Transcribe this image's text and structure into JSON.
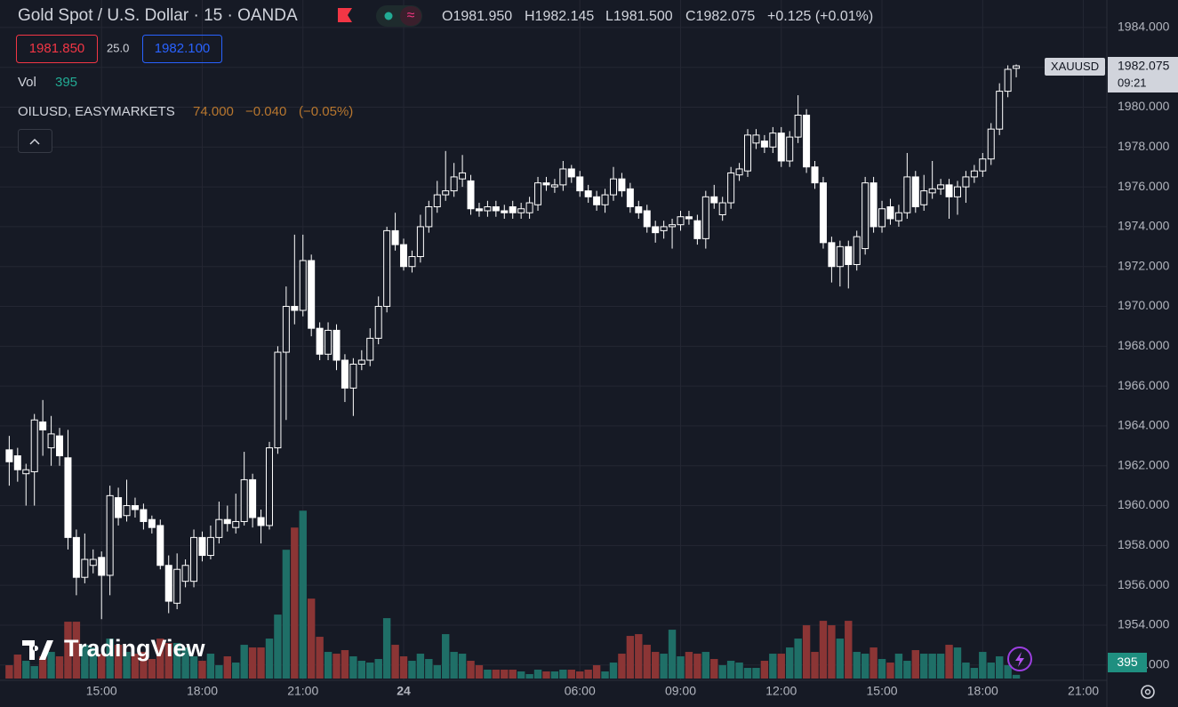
{
  "chart_data": {
    "type": "candlestick",
    "title": "Gold Spot / U.S. Dollar · 15 · OANDA",
    "legend": [
      "O1981.950",
      "H1982.145",
      "L1981.500",
      "C1982.075",
      "+0.125 (+0.01%)"
    ],
    "sell_price": "1981.850",
    "spread": "25.0",
    "buy_price": "1982.100",
    "volume_label": "Vol",
    "volume_value": "395",
    "compare_symbol": "OILUSD, EASYMARKETS",
    "compare_values": [
      "74.000",
      "−0.040",
      "(−0.05%)"
    ],
    "symbol": "XAUUSD",
    "countdown": "09:21",
    "brand": "TradingView",
    "candle_color": "#ffffff",
    "up_volume_color": "#1f6f67",
    "down_volume_color": "#8b3535",
    "grid": true,
    "xlim": [
      -1.1,
      130.8
    ],
    "xticks": [
      {
        "value": 11,
        "label": "15:00"
      },
      {
        "value": 23,
        "label": "18:00"
      },
      {
        "value": 35,
        "label": "21:00"
      },
      {
        "value": 47,
        "label": "24"
      },
      {
        "value": 68,
        "label": "06:00"
      },
      {
        "value": 80,
        "label": "09:00"
      },
      {
        "value": 92,
        "label": "12:00"
      },
      {
        "value": 104,
        "label": "15:00"
      },
      {
        "value": 116,
        "label": "18:00"
      },
      {
        "value": 128,
        "label": "21:00"
      }
    ],
    "ylim": [
      1951.23,
      1985.38
    ],
    "yticks": [
      {
        "value": 1952,
        "label": "1952.000"
      },
      {
        "value": 1954,
        "label": "1954.000"
      },
      {
        "value": 1956,
        "label": "1956.000"
      },
      {
        "value": 1958,
        "label": "1958.000"
      },
      {
        "value": 1960,
        "label": "1960.000"
      },
      {
        "value": 1962,
        "label": "1962.000"
      },
      {
        "value": 1964,
        "label": "1964.000"
      },
      {
        "value": 1966,
        "label": "1966.000"
      },
      {
        "value": 1968,
        "label": "1968.000"
      },
      {
        "value": 1970,
        "label": "1970.000"
      },
      {
        "value": 1972,
        "label": "1972.000"
      },
      {
        "value": 1974,
        "label": "1974.000"
      },
      {
        "value": 1976,
        "label": "1976.000"
      },
      {
        "value": 1978,
        "label": "1978.000"
      },
      {
        "value": 1980,
        "label": "1980.000"
      },
      {
        "value": 1982,
        "label": "1982.000"
      },
      {
        "value": 1984,
        "label": "1984.000"
      }
    ],
    "y2lim": [
      0,
      19500
    ],
    "open": [
      1962.8,
      1962.5,
      1961.6,
      1961.7,
      1964.2,
      1962.9,
      1963.5,
      1962.4,
      1958.4,
      1956.4,
      1957.0,
      1957.4,
      1956.5,
      1960.4,
      1959.5,
      1960.0,
      1959.8,
      1959.3,
      1959.0,
      1957.0,
      1955.1,
      1956.2,
      1956.2,
      1958.4,
      1957.5,
      1958.4,
      1959.3,
      1958.9,
      1959.2,
      1961.3,
      1959.4,
      1959.0,
      1962.9,
      1967.7,
      1970.0,
      1969.8,
      1972.3,
      1968.9,
      1967.6,
      1968.8,
      1967.3,
      1965.9,
      1967.1,
      1967.3,
      1968.4,
      1970.0,
      1973.8,
      1973.1,
      1972.0,
      1972.5,
      1974.0,
      1975.0,
      1975.6,
      1975.8,
      1976.4,
      1976.3,
      1974.9,
      1974.8,
      1975.0,
      1974.8,
      1975.0,
      1974.7,
      1974.7,
      1975.1,
      1976.2,
      1976.0,
      1976.1,
      1976.9,
      1976.5,
      1975.8,
      1975.5,
      1975.1,
      1975.6,
      1976.4,
      1975.9,
      1975.0,
      1974.8,
      1974.0,
      1973.8,
      1974.0,
      1974.1,
      1974.5,
      1974.3,
      1973.4,
      1975.5,
      1974.6,
      1975.2,
      1976.6,
      1976.8,
      1978.2,
      1978.3,
      1978.0,
      1978.7,
      1977.3,
      1978.5,
      1979.6,
      1977.0,
      1976.2,
      1973.2,
      1972.0,
      1973.0,
      1972.1,
      1972.9,
      1976.2,
      1974.0,
      1975.0,
      1974.3,
      1974.7,
      1976.5,
      1975.1,
      1975.7,
      1975.9,
      1976.1,
      1975.5,
      1976.0,
      1976.5,
      1976.8,
      1977.4,
      1978.9,
      1980.8,
      1981.95
    ],
    "high": [
      1963.5,
      1962.9,
      1962.1,
      1964.6,
      1965.3,
      1964.5,
      1963.9,
      1963.8,
      1958.8,
      1958.6,
      1957.8,
      1957.7,
      1961.0,
      1960.9,
      1961.3,
      1960.4,
      1960.1,
      1959.5,
      1959.3,
      1957.5,
      1957.6,
      1957.3,
      1958.8,
      1958.7,
      1959.0,
      1960.2,
      1960.0,
      1960.6,
      1962.7,
      1961.6,
      1959.8,
      1963.2,
      1968.0,
      1971.0,
      1973.6,
      1973.6,
      1972.6,
      1969.2,
      1969.2,
      1969.1,
      1967.6,
      1967.4,
      1967.8,
      1968.9,
      1970.5,
      1974.0,
      1974.7,
      1973.4,
      1972.8,
      1974.6,
      1975.3,
      1976.3,
      1977.8,
      1977.2,
      1977.6,
      1976.6,
      1975.2,
      1975.3,
      1975.3,
      1975.1,
      1975.3,
      1975.2,
      1975.5,
      1976.5,
      1976.5,
      1976.4,
      1977.3,
      1977.1,
      1976.8,
      1976.1,
      1975.8,
      1975.9,
      1977.0,
      1976.7,
      1976.2,
      1975.3,
      1975.1,
      1974.3,
      1974.3,
      1974.4,
      1974.8,
      1974.8,
      1974.6,
      1975.8,
      1976.1,
      1975.5,
      1977.0,
      1977.2,
      1978.9,
      1978.9,
      1978.6,
      1979.0,
      1979.0,
      1978.8,
      1980.6,
      1979.9,
      1977.3,
      1976.5,
      1973.5,
      1973.3,
      1973.3,
      1973.8,
      1976.5,
      1976.5,
      1975.3,
      1975.4,
      1975.1,
      1977.7,
      1976.8,
      1976.6,
      1977.3,
      1976.4,
      1976.4,
      1976.3,
      1976.8,
      1977.1,
      1977.7,
      1979.2,
      1981.2,
      1982.1,
      1982.145
    ],
    "low": [
      1961.0,
      1961.2,
      1960.0,
      1960.0,
      1962.5,
      1962.0,
      1962.0,
      1957.8,
      1955.5,
      1956.1,
      1956.6,
      1954.3,
      1955.5,
      1959.0,
      1959.2,
      1959.4,
      1958.8,
      1958.6,
      1956.8,
      1954.6,
      1954.8,
      1955.9,
      1955.9,
      1957.2,
      1957.3,
      1958.1,
      1958.7,
      1958.6,
      1959.0,
      1958.9,
      1958.1,
      1958.8,
      1962.6,
      1964.3,
      1969.1,
      1969.5,
      1968.5,
      1967.3,
      1967.3,
      1966.8,
      1965.2,
      1964.5,
      1966.8,
      1967.0,
      1968.1,
      1969.7,
      1972.8,
      1971.8,
      1971.7,
      1972.2,
      1973.7,
      1974.7,
      1975.3,
      1975.5,
      1976.0,
      1974.6,
      1974.5,
      1974.5,
      1974.5,
      1974.4,
      1974.4,
      1974.4,
      1974.4,
      1974.8,
      1975.8,
      1975.7,
      1975.8,
      1976.2,
      1975.5,
      1975.2,
      1974.8,
      1974.7,
      1975.3,
      1975.5,
      1974.7,
      1974.4,
      1973.7,
      1973.2,
      1973.4,
      1972.9,
      1973.8,
      1974.1,
      1973.1,
      1972.9,
      1974.9,
      1974.3,
      1974.9,
      1976.3,
      1976.5,
      1977.9,
      1977.7,
      1977.7,
      1977.0,
      1977.0,
      1978.2,
      1976.7,
      1975.9,
      1972.9,
      1971.2,
      1971.0,
      1970.9,
      1971.8,
      1972.6,
      1973.7,
      1973.7,
      1974.1,
      1974.0,
      1974.4,
      1974.7,
      1974.8,
      1975.4,
      1975.6,
      1974.4,
      1974.6,
      1975.2,
      1976.2,
      1976.5,
      1977.1,
      1978.6,
      1980.5,
      1981.5
    ],
    "close": [
      1962.2,
      1961.8,
      1961.8,
      1964.3,
      1963.8,
      1963.6,
      1962.5,
      1958.4,
      1956.4,
      1957.3,
      1957.3,
      1956.5,
      1960.5,
      1959.4,
      1960.0,
      1959.8,
      1959.2,
      1958.9,
      1957.0,
      1955.2,
      1956.8,
      1957.0,
      1958.4,
      1957.5,
      1958.4,
      1959.3,
      1959.1,
      1959.2,
      1961.3,
      1959.4,
      1959.0,
      1962.9,
      1967.7,
      1970.0,
      1969.8,
      1972.3,
      1968.9,
      1967.6,
      1968.8,
      1967.3,
      1965.9,
      1967.1,
      1967.3,
      1968.4,
      1970.0,
      1973.8,
      1973.1,
      1972.0,
      1972.5,
      1974.0,
      1975.0,
      1975.6,
      1975.8,
      1976.5,
      1976.7,
      1974.9,
      1974.8,
      1975.0,
      1974.8,
      1974.7,
      1974.7,
      1974.9,
      1975.2,
      1976.2,
      1976.1,
      1976.1,
      1976.9,
      1976.5,
      1975.8,
      1975.5,
      1975.1,
      1975.6,
      1976.4,
      1975.8,
      1975.0,
      1974.7,
      1974.0,
      1973.7,
      1974.0,
      1974.1,
      1974.5,
      1974.4,
      1973.4,
      1975.5,
      1975.2,
      1975.2,
      1976.7,
      1976.9,
      1978.6,
      1978.6,
      1978.0,
      1978.7,
      1977.3,
      1978.5,
      1979.6,
      1977.0,
      1976.2,
      1973.2,
      1972.0,
      1973.0,
      1972.1,
      1973.5,
      1976.2,
      1974.0,
      1974.9,
      1974.4,
      1974.7,
      1976.5,
      1975.0,
      1975.8,
      1975.9,
      1976.1,
      1975.5,
      1976.0,
      1976.5,
      1976.8,
      1977.4,
      1978.9,
      1980.8,
      1981.9,
      1982.075
    ],
    "volume": [
      1425,
      2565,
      1900,
      1330,
      2375,
      2850,
      2375,
      6080,
      6080,
      3610,
      3325,
      2660,
      4275,
      3610,
      2850,
      2660,
      2850,
      2090,
      4275,
      3800,
      3800,
      3325,
      2375,
      1900,
      2660,
      1425,
      2375,
      1710,
      3610,
      3325,
      3325,
      4275,
      6840,
      13775,
      16150,
      17955,
      8550,
      4465,
      2850,
      2660,
      3040,
      2375,
      1900,
      1710,
      2090,
      6460,
      3610,
      2375,
      1900,
      2660,
      2090,
      1425,
      4750,
      2850,
      2660,
      1900,
      1425,
      950,
      950,
      950,
      950,
      760,
      475,
      950,
      760,
      760,
      950,
      950,
      760,
      950,
      1425,
      760,
      1710,
      2660,
      4560,
      4750,
      3610,
      2850,
      2660,
      5225,
      2375,
      2850,
      2660,
      2850,
      2090,
      1425,
      1900,
      1710,
      1140,
      1140,
      1900,
      2660,
      2660,
      3325,
      4275,
      5700,
      2850,
      6175,
      5700,
      4275,
      6175,
      2850,
      2660,
      3325,
      2090,
      1710,
      2660,
      1900,
      3040,
      2660,
      2660,
      2660,
      3610,
      3325,
      1710,
      1140,
      2850,
      1710,
      2375,
      1425,
      395
    ]
  }
}
